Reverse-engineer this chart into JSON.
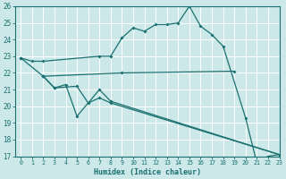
{
  "xlabel": "Humidex (Indice chaleur)",
  "bg_color": "#cce8e8",
  "grid_color": "#ffffff",
  "line_color": "#1a7070",
  "ylim": [
    17,
    26
  ],
  "xlim": [
    -0.5,
    23
  ],
  "yticks": [
    17,
    18,
    19,
    20,
    21,
    22,
    23,
    24,
    25,
    26
  ],
  "xticks": [
    0,
    1,
    2,
    3,
    4,
    5,
    6,
    7,
    8,
    9,
    10,
    11,
    12,
    13,
    14,
    15,
    16,
    17,
    18,
    19,
    20,
    21,
    22,
    23
  ],
  "line1_x": [
    0,
    1,
    2,
    7,
    8,
    9,
    10,
    11,
    12,
    13,
    14,
    15,
    16,
    17,
    18,
    20,
    21,
    22,
    23
  ],
  "line1_y": [
    22.9,
    22.7,
    22.7,
    23.0,
    23.0,
    24.1,
    24.7,
    24.5,
    24.9,
    24.9,
    25.0,
    26.0,
    24.8,
    24.3,
    23.6,
    19.3,
    16.6,
    17.0,
    17.1
  ],
  "line2_x": [
    0,
    2,
    9,
    19
  ],
  "line2_y": [
    22.9,
    21.8,
    22.0,
    22.1
  ],
  "line3_x": [
    2,
    3,
    4,
    5,
    7,
    8,
    23
  ],
  "line3_y": [
    21.8,
    21.1,
    21.3,
    19.4,
    21.0,
    20.3,
    17.1
  ],
  "line4_x": [
    2,
    3,
    5,
    6,
    7,
    8,
    23
  ],
  "line4_y": [
    21.8,
    21.1,
    21.2,
    20.2,
    20.5,
    20.2,
    17.1
  ]
}
